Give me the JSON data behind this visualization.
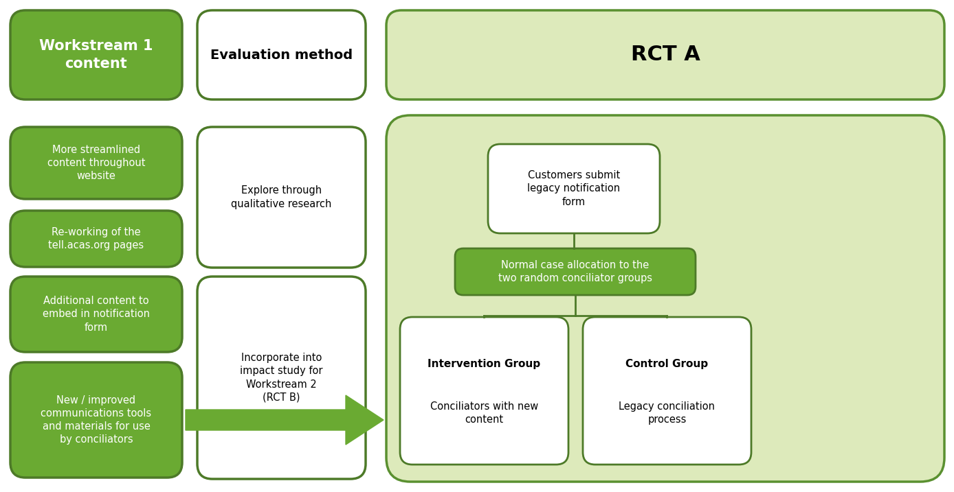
{
  "bg_color": "#ffffff",
  "green_dark": "#4d7a28",
  "green_medium": "#6aaa32",
  "green_light": "#ddeabb",
  "green_border": "#5a9030",
  "white": "#ffffff",
  "black": "#000000",
  "header_ws1_text": "Workstream 1\ncontent",
  "header_eval_text": "Evaluation method",
  "header_rct_text": "RCT A",
  "ws1_boxes": [
    "More streamlined\ncontent throughout\nwebsite",
    "Re-working of the\ntell.acas.org pages",
    "Additional content to\nembed in notification\nform",
    "New / improved\ncommunications tools\nand materials for use\nby conciliators"
  ],
  "eval_boxes": [
    "Explore through\nqualitative research",
    "Incorporate into\nimpact study for\nWorkstream 2\n(RCT B)"
  ],
  "rct_top_box": "Customers submit\nlegacy notification\nform",
  "rct_mid_box": "Normal case allocation to the\ntwo random conciliator groups",
  "rct_left_box_title": "Intervention Group",
  "rct_left_box_body": "Conciliators with new\ncontent",
  "rct_right_box_title": "Control Group",
  "rct_right_box_body": "Legacy conciliation\nprocess"
}
